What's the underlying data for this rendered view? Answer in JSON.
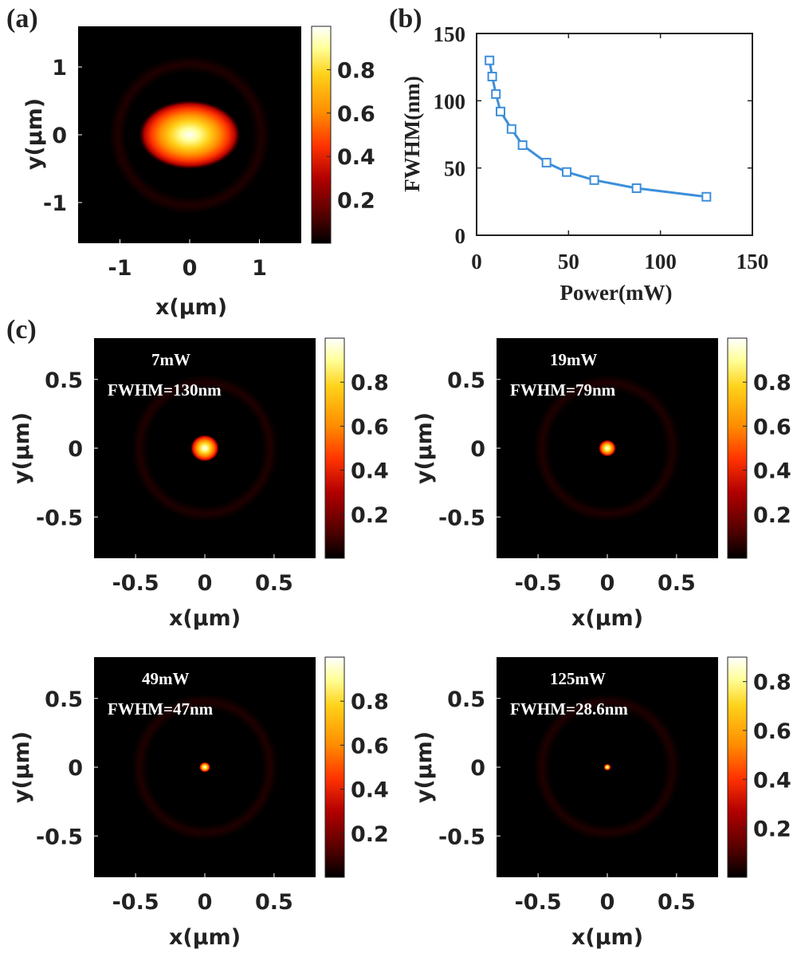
{
  "figure": {
    "panels": [
      {
        "letter": "(a)"
      },
      {
        "letter": "(b)"
      },
      {
        "letter": "(c)"
      }
    ]
  },
  "colors": {
    "background": "#ffffff",
    "axis": "#222222",
    "map_dark": "#000000",
    "line": "#3d8fdb",
    "annotation_text": "#ffffff",
    "colormap": [
      "#000000",
      "#5a0000",
      "#b20000",
      "#ff3300",
      "#ff8c00",
      "#ffd21a",
      "#ffff99",
      "#ffffff"
    ]
  },
  "chart_data": [
    {
      "id": "a",
      "type": "heatmap",
      "xlabel": "x(μm)",
      "ylabel": "y(μm)",
      "xlim": [
        -1.6,
        1.6
      ],
      "ylim": [
        -1.6,
        1.6
      ],
      "xticks": [
        -1,
        0,
        1
      ],
      "yticks": [
        -1,
        0,
        1
      ],
      "colorbar_ticks": [
        0.2,
        0.4,
        0.6,
        0.8
      ],
      "colorbar_range": [
        0,
        1
      ],
      "spot": {
        "cx": 0,
        "cy": 0,
        "fwhm_x_um": 0.5,
        "fwhm_y_um": 0.34
      },
      "annotation": null
    },
    {
      "id": "b",
      "type": "line",
      "xlabel": "Power(mW)",
      "ylabel": "FWHM(nm)",
      "xlim": [
        0,
        150
      ],
      "ylim": [
        0,
        150
      ],
      "xticks": [
        0,
        50,
        100,
        150
      ],
      "yticks": [
        0,
        50,
        100,
        150
      ],
      "marker": "square",
      "series": [
        {
          "x": [
            7,
            8.5,
            10.5,
            13,
            19,
            25,
            38,
            49,
            64,
            87,
            125
          ],
          "y": [
            130,
            118,
            105,
            92,
            79,
            67,
            54,
            47,
            41,
            35,
            28.6
          ]
        }
      ]
    },
    {
      "id": "c1",
      "type": "heatmap",
      "xlabel": "x(μm)",
      "ylabel": "y(μm)",
      "xlim": [
        -0.8,
        0.8
      ],
      "ylim": [
        -0.8,
        0.8
      ],
      "xticks": [
        -0.5,
        0,
        0.5
      ],
      "yticks": [
        -0.5,
        0,
        0.5
      ],
      "colorbar_ticks": [
        0.2,
        0.4,
        0.6,
        0.8
      ],
      "colorbar_range": [
        0,
        1
      ],
      "spot": {
        "cx": 0,
        "cy": 0,
        "fwhm_x_um": 0.13,
        "fwhm_y_um": 0.12
      },
      "annotation": {
        "power": "7mW",
        "fwhm": "FWHM=130nm"
      }
    },
    {
      "id": "c2",
      "type": "heatmap",
      "xlabel": "x(μm)",
      "ylabel": "y(μm)",
      "xlim": [
        -0.8,
        0.8
      ],
      "ylim": [
        -0.8,
        0.8
      ],
      "xticks": [
        -0.5,
        0,
        0.5
      ],
      "yticks": [
        -0.5,
        0,
        0.5
      ],
      "colorbar_ticks": [
        0.2,
        0.4,
        0.6,
        0.8
      ],
      "colorbar_range": [
        0,
        1
      ],
      "spot": {
        "cx": 0,
        "cy": 0,
        "fwhm_x_um": 0.079,
        "fwhm_y_um": 0.074
      },
      "annotation": {
        "power": "19mW",
        "fwhm": "FWHM=79nm"
      }
    },
    {
      "id": "c3",
      "type": "heatmap",
      "xlabel": "x(μm)",
      "ylabel": "y(μm)",
      "xlim": [
        -0.8,
        0.8
      ],
      "ylim": [
        -0.8,
        0.8
      ],
      "xticks": [
        -0.5,
        0,
        0.5
      ],
      "yticks": [
        -0.5,
        0,
        0.5
      ],
      "colorbar_ticks": [
        0.2,
        0.4,
        0.6,
        0.8
      ],
      "colorbar_range": [
        0,
        1
      ],
      "spot": {
        "cx": 0,
        "cy": 0,
        "fwhm_x_um": 0.047,
        "fwhm_y_um": 0.045
      },
      "annotation": {
        "power": "49mW",
        "fwhm": "FWHM=47nm"
      }
    },
    {
      "id": "c4",
      "type": "heatmap",
      "xlabel": "x(μm)",
      "ylabel": "y(μm)",
      "xlim": [
        -0.8,
        0.8
      ],
      "ylim": [
        -0.8,
        0.8
      ],
      "xticks": [
        -0.5,
        0,
        0.5
      ],
      "yticks": [
        -0.5,
        0,
        0.5
      ],
      "colorbar_ticks": [
        0.2,
        0.4,
        0.6,
        0.8
      ],
      "colorbar_range": [
        0,
        0.9
      ],
      "spot": {
        "cx": 0,
        "cy": 0,
        "fwhm_x_um": 0.0286,
        "fwhm_y_um": 0.027
      },
      "annotation": {
        "power": "125mW",
        "fwhm": "FWHM=28.6nm"
      }
    }
  ]
}
